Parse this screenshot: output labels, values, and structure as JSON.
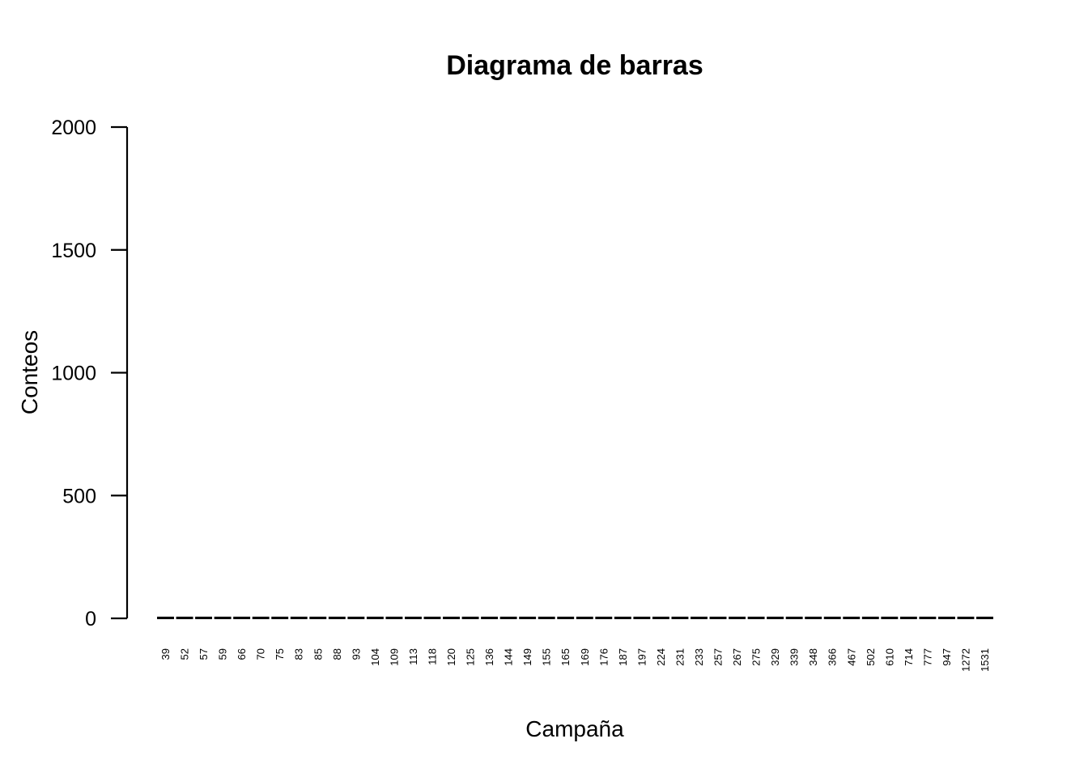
{
  "chart_data": {
    "type": "bar",
    "title": "Diagrama de barras",
    "xlabel": "Campaña",
    "ylabel": "Conteos",
    "ylim": [
      0,
      2000
    ],
    "yticks": [
      "0",
      "500",
      "1000",
      "1500",
      "2000"
    ],
    "categories": [
      "39",
      "52",
      "57",
      "59",
      "66",
      "70",
      "75",
      "83",
      "85",
      "88",
      "93",
      "104",
      "109",
      "113",
      "118",
      "120",
      "125",
      "136",
      "144",
      "149",
      "155",
      "165",
      "169",
      "176",
      "187",
      "197",
      "224",
      "231",
      "233",
      "257",
      "267",
      "275",
      "329",
      "339",
      "348",
      "366",
      "467",
      "502",
      "610",
      "714",
      "777",
      "947",
      "1272",
      "1531"
    ],
    "values": [
      1,
      1,
      1,
      1,
      1,
      1,
      1,
      1,
      1,
      1,
      1,
      1,
      1,
      1,
      1,
      1,
      1,
      1,
      1,
      1,
      1,
      1,
      1,
      1,
      1,
      1,
      1,
      1,
      1,
      1,
      1,
      1,
      1,
      1,
      1,
      1,
      1,
      1,
      1,
      1,
      1,
      1,
      1,
      1
    ],
    "bar_color": "#000000",
    "grid": false,
    "legend": "none"
  }
}
